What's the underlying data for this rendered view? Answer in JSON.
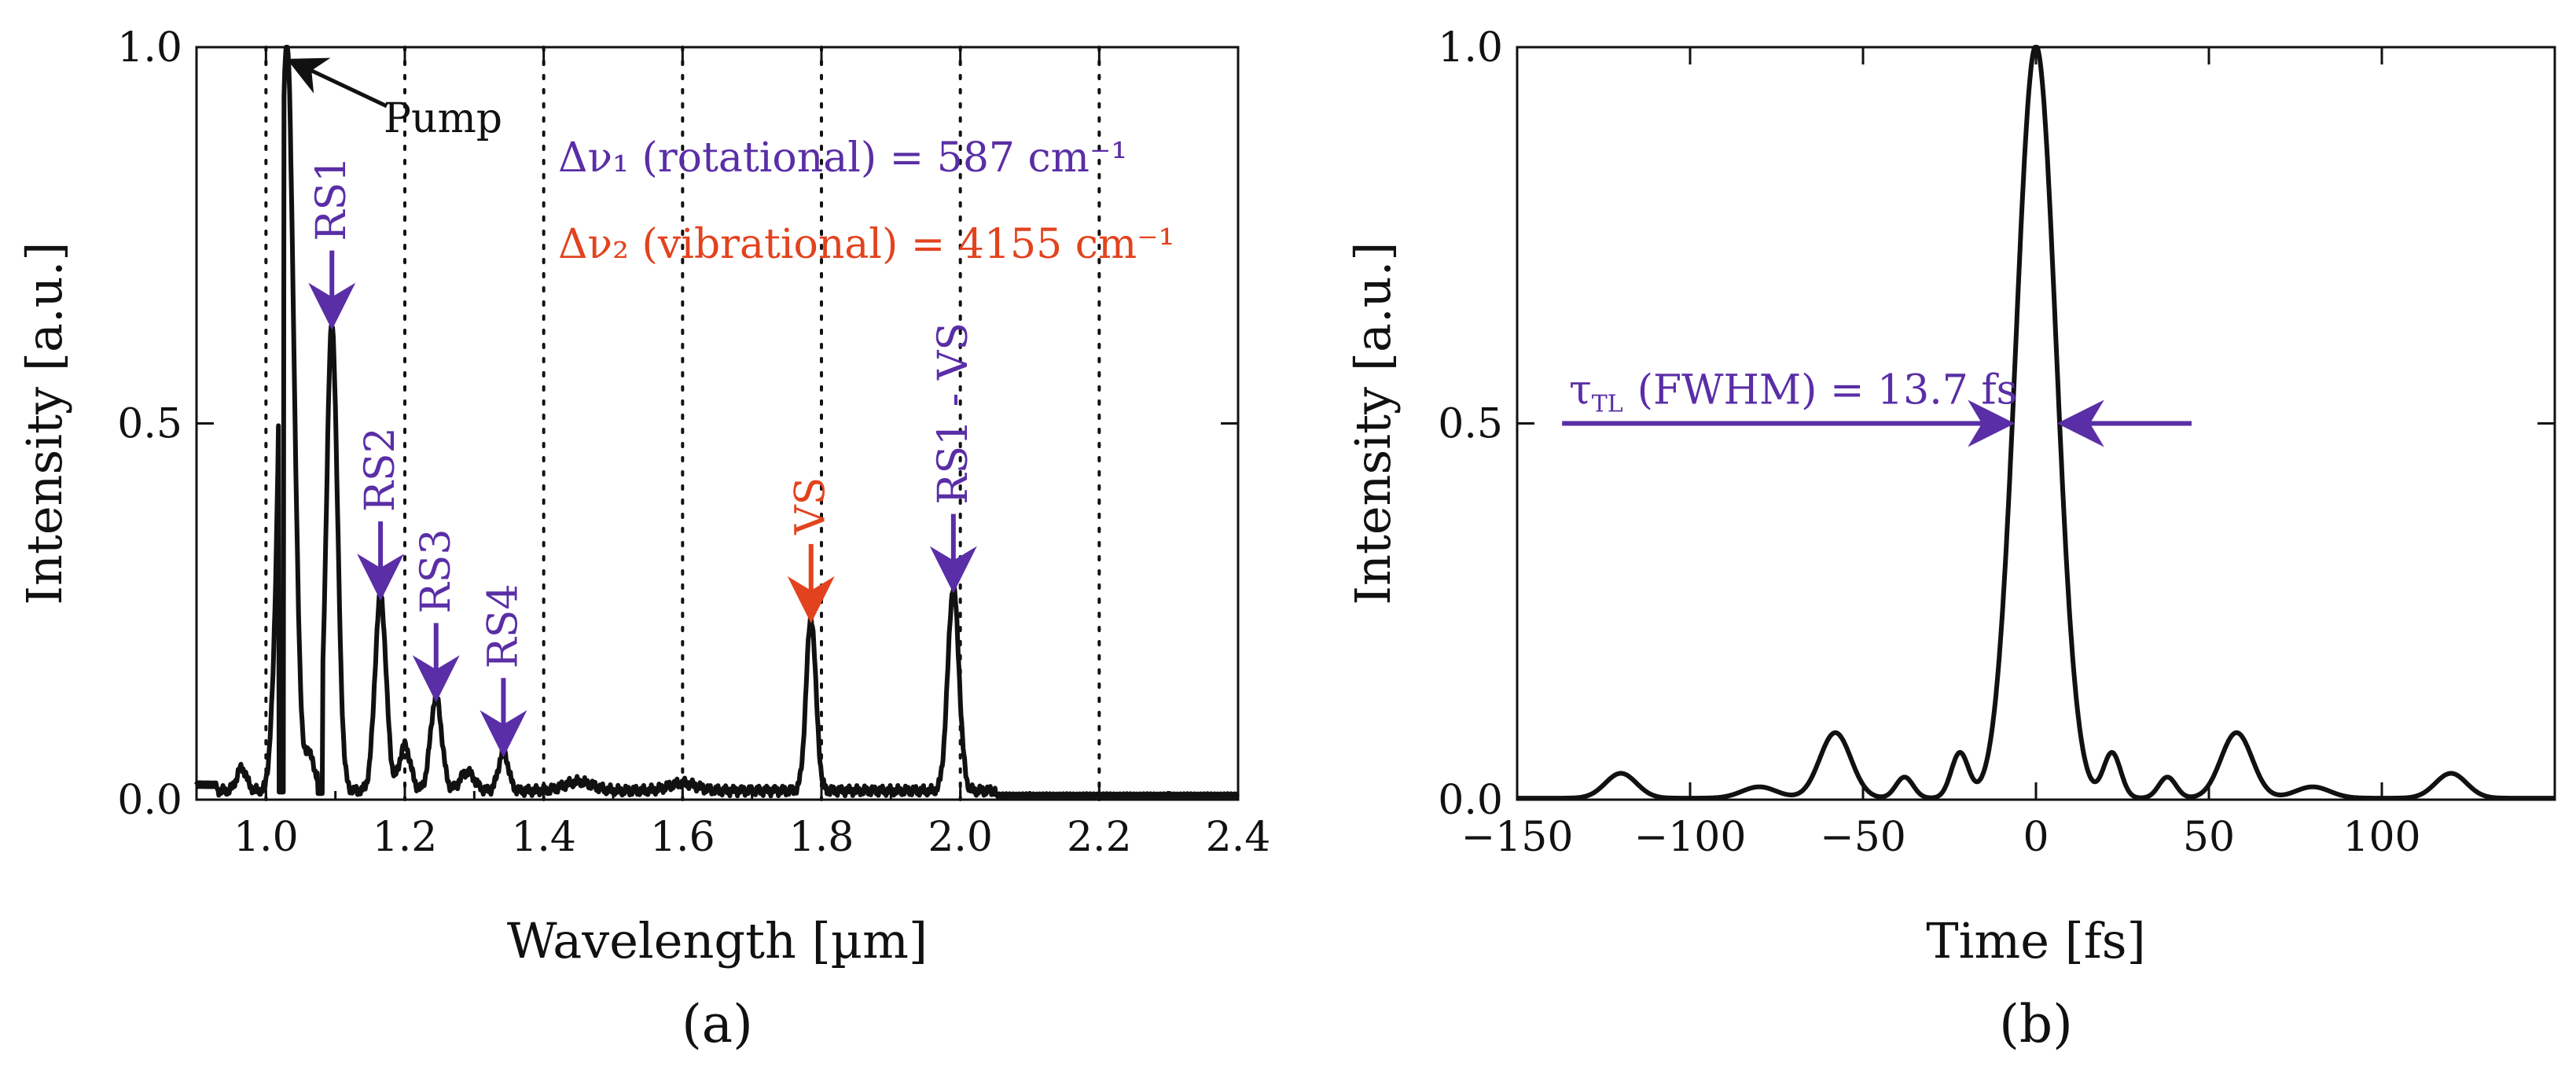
{
  "chart_data": [
    {
      "type": "line",
      "panel_label": "(a)",
      "xlabel": "Wavelength [µm]",
      "ylabel": "Intensity [a.u.]",
      "xlim": [
        0.9,
        2.4
      ],
      "ylim": [
        0,
        1.0
      ],
      "xticks": [
        "1.0",
        "1.2",
        "1.4",
        "1.6",
        "1.8",
        "2.0",
        "2.2",
        "2.4"
      ],
      "xtick_values": [
        1.0,
        1.2,
        1.4,
        1.6,
        1.8,
        2.0,
        2.2,
        2.4
      ],
      "yticks": [
        "0.0",
        "0.5",
        "1.0"
      ],
      "ytick_values": [
        0.0,
        0.5,
        1.0
      ],
      "vertical_dotted_lines": [
        1.0,
        1.2,
        1.4,
        1.6,
        1.8,
        2.0,
        2.2
      ],
      "peaks": [
        {
          "name": "Pump",
          "x": 1.03,
          "y": 1.0,
          "width": 0.01
        },
        {
          "name": "RS1",
          "x": 1.095,
          "y": 0.62,
          "width": 0.008
        },
        {
          "name": "RS2",
          "x": 1.165,
          "y": 0.26,
          "width": 0.008
        },
        {
          "name": "RS3",
          "x": 1.245,
          "y": 0.125,
          "width": 0.008
        },
        {
          "name": "RS4",
          "x": 1.342,
          "y": 0.052,
          "width": 0.007
        },
        {
          "name": "VS",
          "x": 1.785,
          "y": 0.23,
          "width": 0.007
        },
        {
          "name": "RS1 - VS",
          "x": 1.99,
          "y": 0.27,
          "width": 0.008
        }
      ],
      "minor_peaks": [
        {
          "x": 0.965,
          "y": 0.03,
          "width": 0.007
        },
        {
          "x": 1.008,
          "y": 0.02,
          "width": 0.004
        },
        {
          "x": 1.063,
          "y": 0.05,
          "width": 0.005
        },
        {
          "x": 1.2,
          "y": 0.06,
          "width": 0.008
        },
        {
          "x": 1.29,
          "y": 0.025,
          "width": 0.01
        },
        {
          "x": 1.45,
          "y": 0.012,
          "width": 0.02
        },
        {
          "x": 1.6,
          "y": 0.01,
          "width": 0.02
        }
      ],
      "baseline": 0.012,
      "annotations": [
        {
          "text": "Pump",
          "color": "#111111"
        },
        {
          "text": "Δν₁ (rotational) = 587 cm⁻¹",
          "color": "#5a2ea6"
        },
        {
          "text": "Δν₂ (vibrational) = 4155 cm⁻¹",
          "color": "#e2431e"
        }
      ],
      "peak_label_colors": {
        "RS1": "#5a2ea6",
        "RS2": "#5a2ea6",
        "RS3": "#5a2ea6",
        "RS4": "#5a2ea6",
        "VS": "#e2431e",
        "RS1 - VS": "#5a2ea6"
      }
    },
    {
      "type": "line",
      "panel_label": "(b)",
      "xlabel": "Time [fs]",
      "ylabel": "Intensity [a.u.]",
      "xlim": [
        -150,
        150
      ],
      "ylim": [
        0,
        1.0
      ],
      "xticks": [
        "−150",
        "−100",
        "−50",
        "0",
        "50",
        "100"
      ],
      "xtick_values": [
        -150,
        -100,
        -50,
        0,
        50,
        100
      ],
      "yticks": [
        "0.0",
        "0.5",
        "1.0"
      ],
      "ytick_values": [
        0.0,
        0.5,
        1.0
      ],
      "peaks": [
        {
          "x": 0,
          "y": 1.0,
          "width": 5.8
        },
        {
          "x": -22,
          "y": 0.06,
          "width": 2.5
        },
        {
          "x": 22,
          "y": 0.06,
          "width": 2.5
        },
        {
          "x": -38,
          "y": 0.028,
          "width": 2.5
        },
        {
          "x": 38,
          "y": 0.028,
          "width": 2.5
        },
        {
          "x": -58,
          "y": 0.087,
          "width": 4.5
        },
        {
          "x": 58,
          "y": 0.087,
          "width": 4.5
        },
        {
          "x": -80,
          "y": 0.015,
          "width": 5
        },
        {
          "x": 80,
          "y": 0.015,
          "width": 5
        },
        {
          "x": -120,
          "y": 0.033,
          "width": 4.5
        },
        {
          "x": 120,
          "y": 0.033,
          "width": 4.5
        }
      ],
      "annotation": {
        "text": "τ_TL (FWHM) = 13.7 fs",
        "symbol": "τ",
        "subscript": "TL",
        "rest": "(FWHM) = 13.7 fs",
        "value_fs": 13.7,
        "arrow_left_from": -137,
        "arrow_left_to": -7,
        "arrow_right_from": 45,
        "arrow_right_to": 7,
        "arrow_y": 0.5,
        "color": "#5a2ea6"
      }
    }
  ]
}
